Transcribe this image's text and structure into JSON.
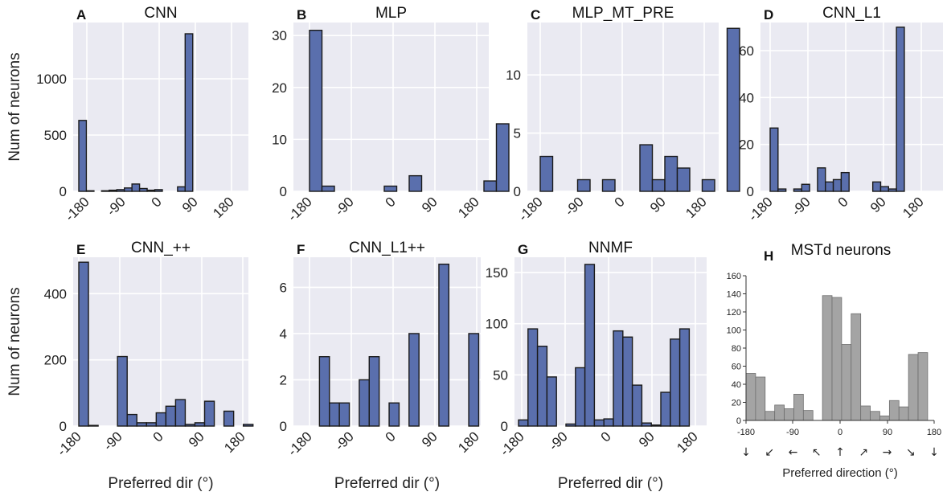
{
  "chart_data": [
    {
      "id": "A",
      "letter": "A",
      "title": "CNN",
      "type": "bar",
      "ylabel": "Num of neurons",
      "xlabel": "",
      "ylim": [
        0,
        1500
      ],
      "yticks": [
        0,
        500,
        1000
      ],
      "xticks": [
        "-180",
        "-90",
        "0",
        "90",
        "180"
      ],
      "values": [
        630,
        5,
        0,
        5,
        10,
        15,
        30,
        65,
        25,
        10,
        15,
        0,
        0,
        40,
        1400
      ]
    },
    {
      "id": "B",
      "letter": "B",
      "title": "MLP",
      "type": "bar",
      "ylabel": "",
      "xlabel": "",
      "ylim": [
        0,
        32.5
      ],
      "yticks": [
        0,
        10,
        20,
        30
      ],
      "xticks": [
        "-180",
        "-90",
        "0",
        "90",
        "180"
      ],
      "values": [
        31,
        1,
        0,
        0,
        0,
        0,
        1,
        0,
        3,
        0,
        0,
        0,
        0,
        0,
        2,
        13
      ]
    },
    {
      "id": "C",
      "letter": "C",
      "title": "MLP_MT_PRE",
      "type": "bar",
      "ylabel": "",
      "xlabel": "",
      "ylim": [
        0,
        14.5
      ],
      "yticks": [
        0,
        5,
        10
      ],
      "xticks": [
        "-180",
        "-90",
        "0",
        "90",
        "180"
      ],
      "values": [
        3,
        0,
        0,
        1,
        0,
        1,
        0,
        0,
        4,
        1,
        3,
        2,
        0,
        1,
        0,
        14
      ]
    },
    {
      "id": "D",
      "letter": "D",
      "title": "CNN_L1",
      "type": "bar",
      "ylabel": "",
      "xlabel": "",
      "ylim": [
        0,
        72
      ],
      "yticks": [
        0,
        20,
        40,
        60
      ],
      "xticks": [
        "-180",
        "-90",
        "0",
        "90",
        "180"
      ],
      "values": [
        27,
        1,
        0,
        1,
        3,
        0,
        10,
        4,
        5,
        8,
        0,
        0,
        0,
        4,
        2,
        1,
        70
      ]
    },
    {
      "id": "E",
      "letter": "E",
      "title": "CNN_++",
      "type": "bar",
      "ylabel": "Num of neurons",
      "xlabel": "Preferred dir (°)",
      "ylim": [
        0,
        510
      ],
      "yticks": [
        0,
        200,
        400
      ],
      "xticks": [
        "-180",
        "-90",
        "0",
        "90",
        "180"
      ],
      "values": [
        495,
        2,
        0,
        0,
        210,
        35,
        10,
        10,
        40,
        60,
        80,
        5,
        10,
        75,
        0,
        45,
        0,
        5
      ]
    },
    {
      "id": "F",
      "letter": "F",
      "title": "CNN_L1++",
      "type": "bar",
      "ylabel": "",
      "xlabel": "Preferred dir (°)",
      "ylim": [
        0,
        7.3
      ],
      "yticks": [
        0,
        2,
        4,
        6
      ],
      "xticks": [
        "-180",
        "-90",
        "0",
        "90",
        "180"
      ],
      "values": [
        0,
        3,
        1,
        1,
        0,
        2,
        3,
        0,
        1,
        0,
        4,
        0,
        0,
        7,
        0,
        0,
        4,
        0
      ]
    },
    {
      "id": "G",
      "letter": "G",
      "title": "NNMF",
      "type": "bar",
      "ylabel": "",
      "xlabel": "Preferred dir (°)",
      "ylim": [
        0,
        165
      ],
      "yticks": [
        0,
        50,
        100,
        150
      ],
      "xticks": [
        "-180",
        "-90",
        "0",
        "90",
        "180"
      ],
      "values": [
        6,
        95,
        78,
        48,
        0,
        2,
        57,
        158,
        6,
        7,
        93,
        87,
        40,
        3,
        1,
        33,
        85,
        95
      ]
    },
    {
      "id": "H",
      "letter": "H",
      "title": "MSTd neurons",
      "type": "bar",
      "ylabel": "",
      "xlabel": "Preferred direction (°)",
      "ylim": [
        0,
        160
      ],
      "yticks": [
        0,
        20,
        40,
        60,
        80,
        100,
        120,
        140,
        160
      ],
      "xticks": [
        "-180",
        "-90",
        "0",
        "90",
        "180"
      ],
      "values": [
        52,
        48,
        10,
        17,
        13,
        29,
        11,
        0,
        138,
        136,
        84,
        118,
        16,
        10,
        5,
        22,
        15,
        73,
        75
      ],
      "direction_arrows": [
        "↓",
        "↙",
        "←",
        "↖",
        "↑",
        "↗",
        "→",
        "↘",
        "↓"
      ]
    }
  ]
}
